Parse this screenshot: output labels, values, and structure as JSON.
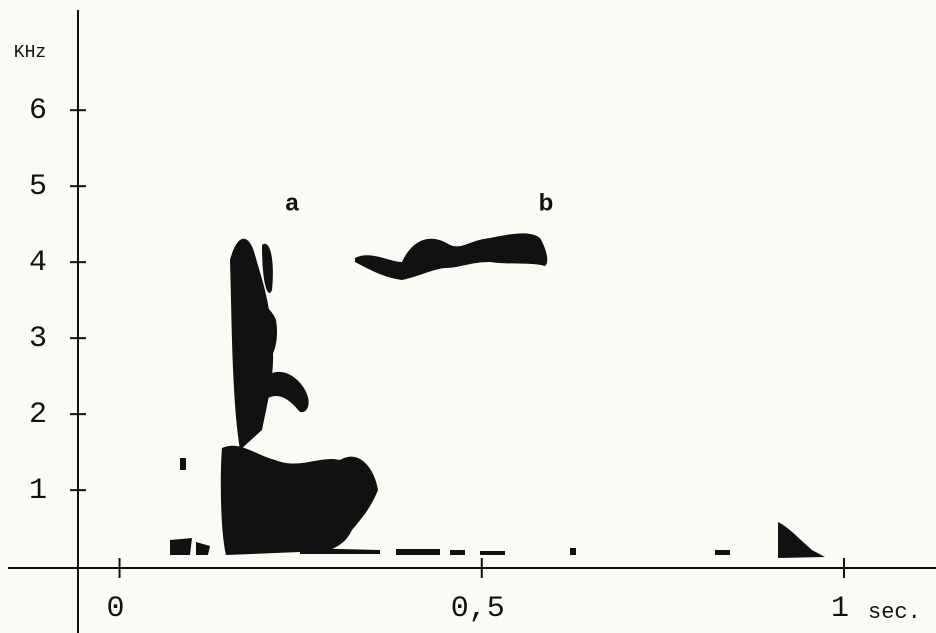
{
  "chart_data": {
    "type": "spectrogram",
    "y_label": "KHz",
    "x_label": "sec.",
    "annotations": [
      "a",
      "b"
    ],
    "xlim": [
      -0.165,
      1.127
    ],
    "ylim": [
      -0.88,
      7.45
    ],
    "xticks": [
      0,
      {
        "value": 0.5,
        "label": "0,5"
      },
      1
    ],
    "yticks": [
      1,
      2,
      3,
      4,
      5,
      6
    ],
    "color": "#111111"
  }
}
